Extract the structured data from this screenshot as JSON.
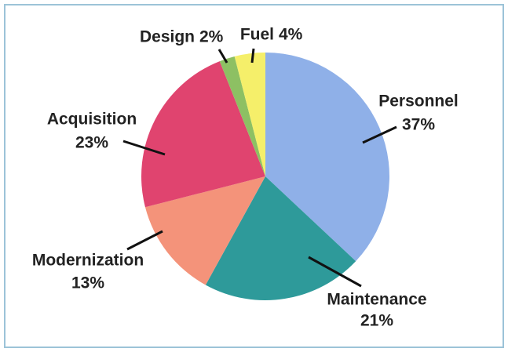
{
  "chart_data": {
    "type": "pie",
    "categories": [
      "Personnel",
      "Maintenance",
      "Modernization",
      "Acquisition",
      "Design",
      "Fuel"
    ],
    "values": [
      37,
      21,
      13,
      23,
      2,
      4
    ],
    "value_labels": [
      "37%",
      "21%",
      "13%",
      "23%",
      "2%",
      "4%"
    ],
    "colors": [
      "#8fb0e8",
      "#2e9a9a",
      "#f4937a",
      "#e0446f",
      "#8dc063",
      "#f5ef6a"
    ]
  }
}
